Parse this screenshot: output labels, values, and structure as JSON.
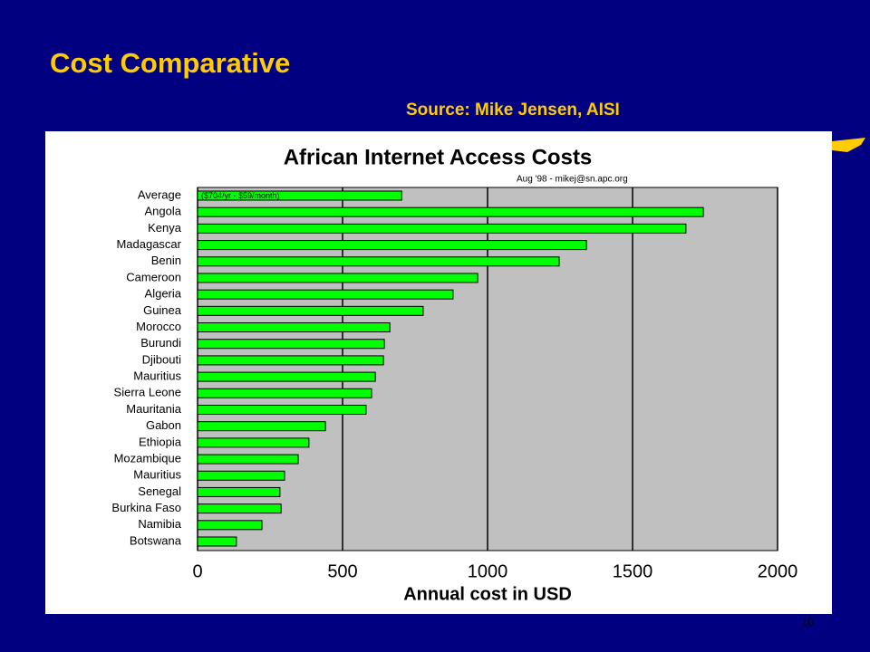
{
  "slide": {
    "title": "Cost Comparative",
    "source": "Source: Mike Jensen, AISI",
    "page": "10"
  },
  "chart_data": {
    "type": "barh",
    "title": "African Internet Access Costs",
    "subtitle": "Aug '98 - mikej@sn.apc.org",
    "annotation": "($704/yr - $59/month)",
    "categories": [
      "Average",
      "Angola",
      "Kenya",
      "Madagascar",
      "Benin",
      "Cameroon",
      "Algeria",
      "Guinea",
      "Morocco",
      "Burundi",
      "Djibouti",
      "Mauritius",
      "Sierra Leone",
      "Mauritania",
      "Gabon",
      "Ethiopia",
      "Mozambique",
      "Mauritius",
      "Senegal",
      "Burkina Faso",
      "Namibia",
      "Botswana"
    ],
    "values": [
      704,
      1744,
      1684,
      1341,
      1247,
      966,
      881,
      778,
      663,
      644,
      641,
      613,
      600,
      581,
      441,
      384,
      347,
      300,
      284,
      288,
      222,
      134
    ],
    "color": "#00ff00",
    "x_label": "Annual cost in USD",
    "xlim": [
      0,
      2000
    ],
    "xticks": [
      0,
      500,
      1000,
      1500,
      2000
    ],
    "grid": true
  }
}
